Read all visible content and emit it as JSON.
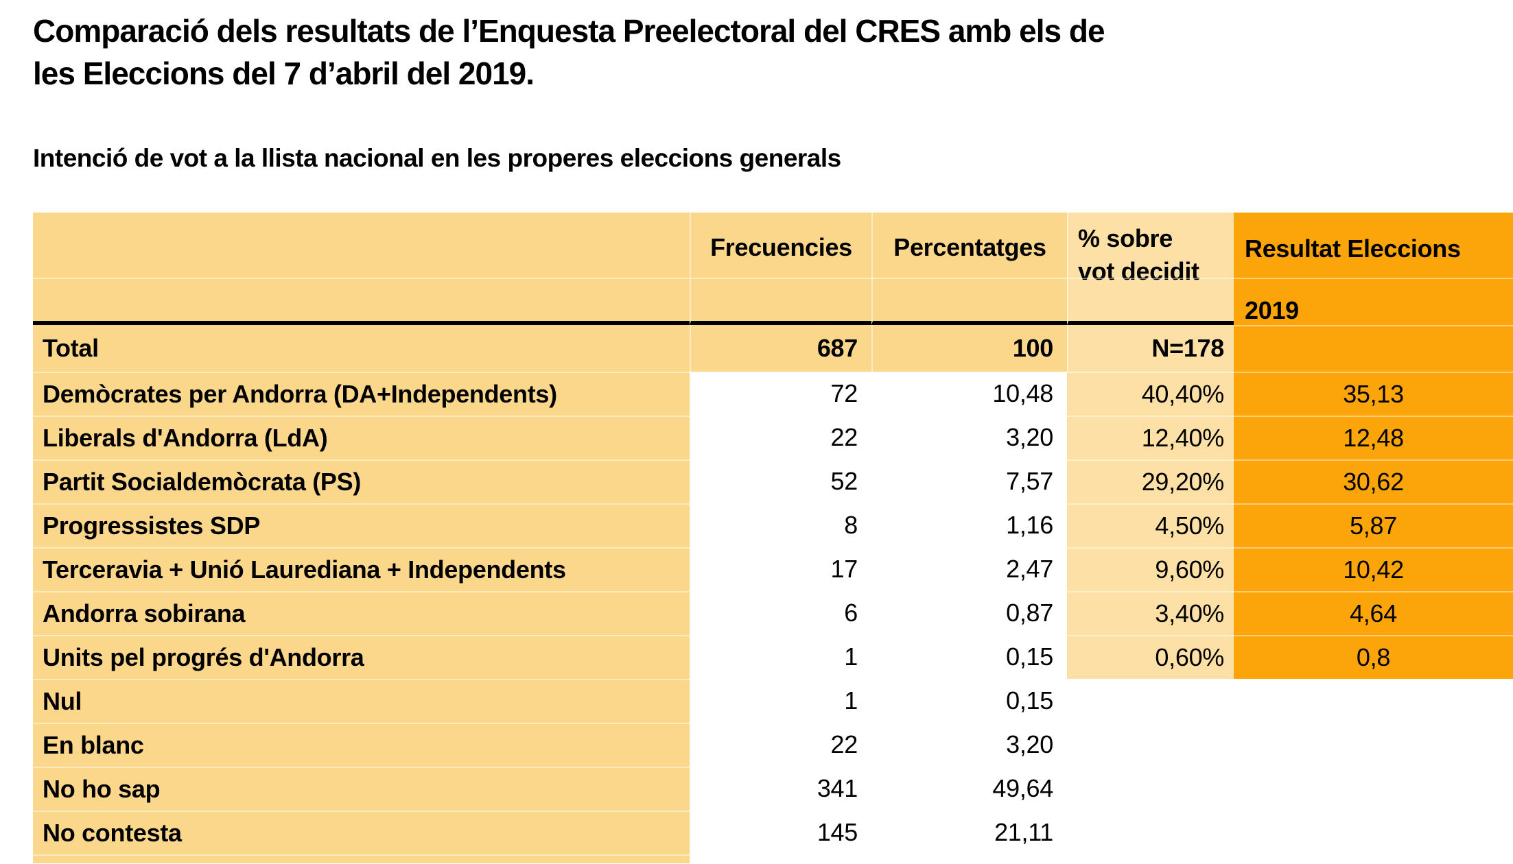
{
  "title": {
    "line1": "Comparació dels resultats de l’Enquesta Preelectoral del CRES amb els de",
    "line2": "les Eleccions del 7 d’abril del 2019."
  },
  "subtitle": "Intenció de vot a la llista nacional en les properes eleccions generals",
  "table": {
    "columns": {
      "frequencies": "Frecuencies",
      "percentages": "Percentatges",
      "decided_line1": "% sobre",
      "decided_line2": "vot decidit",
      "result_line1": "Resultat Eleccions",
      "result_line2": "2019"
    },
    "total": {
      "label": "Total",
      "freq": "687",
      "pct": "100",
      "decided": "N=178"
    },
    "rows": [
      {
        "label": "Demòcrates per Andorra (DA+Independents)",
        "freq": "72",
        "pct": "10,48",
        "decided": "40,40%",
        "result": "35,13"
      },
      {
        "label": "Liberals d'Andorra (LdA)",
        "freq": "22",
        "pct": "3,20",
        "decided": "12,40%",
        "result": "12,48"
      },
      {
        "label": "Partit Socialdemòcrata (PS)",
        "freq": "52",
        "pct": "7,57",
        "decided": "29,20%",
        "result": "30,62"
      },
      {
        "label": "Progressistes SDP",
        "freq": "8",
        "pct": "1,16",
        "decided": "4,50%",
        "result": "5,87"
      },
      {
        "label": "Terceravia + Unió Laurediana + Independents",
        "freq": "17",
        "pct": "2,47",
        "decided": "9,60%",
        "result": "10,42"
      },
      {
        "label": "Andorra sobirana",
        "freq": "6",
        "pct": "0,87",
        "decided": "3,40%",
        "result": "4,64"
      },
      {
        "label": "Units pel progrés d'Andorra",
        "freq": "1",
        "pct": "0,15",
        "decided": "0,60%",
        "result": "0,8"
      },
      {
        "label": "Nul",
        "freq": "1",
        "pct": "0,15",
        "decided": "",
        "result": ""
      },
      {
        "label": "En blanc",
        "freq": "22",
        "pct": "3,20",
        "decided": "",
        "result": ""
      },
      {
        "label": "No ho sap",
        "freq": "341",
        "pct": "49,64",
        "decided": "",
        "result": ""
      },
      {
        "label": "No contesta",
        "freq": "145",
        "pct": "21,11",
        "decided": "",
        "result": ""
      }
    ]
  },
  "colors": {
    "label_column_tan": "#FBD78B",
    "decided_column_cream": "#FDE0A6",
    "results_column_orange": "#FCA50A",
    "text": "#000000",
    "header_rule": "#000000"
  },
  "chart_data": {
    "type": "table",
    "title": "Comparació dels resultats de l’Enquesta Preelectoral del CRES amb els de les Eleccions del 7 d’abril del 2019.",
    "subtitle": "Intenció de vot a la llista nacional en les properes eleccions generals",
    "columns": [
      "",
      "Frecuencies",
      "Percentatges",
      "% sobre vot decidit",
      "Resultat Eleccions 2019"
    ],
    "rows": [
      [
        "Total",
        687,
        100,
        "N=178",
        null
      ],
      [
        "Demòcrates per Andorra (DA+Independents)",
        72,
        10.48,
        "40,40%",
        35.13
      ],
      [
        "Liberals d'Andorra (LdA)",
        22,
        3.2,
        "12,40%",
        12.48
      ],
      [
        "Partit Socialdemòcrata (PS)",
        52,
        7.57,
        "29,20%",
        30.62
      ],
      [
        "Progressistes SDP",
        8,
        1.16,
        "4,50%",
        5.87
      ],
      [
        "Terceravia + Unió Laurediana + Independents",
        17,
        2.47,
        "9,60%",
        10.42
      ],
      [
        "Andorra sobirana",
        6,
        0.87,
        "3,40%",
        4.64
      ],
      [
        "Units pel progrés d'Andorra",
        1,
        0.15,
        "0,60%",
        0.8
      ],
      [
        "Nul",
        1,
        0.15,
        null,
        null
      ],
      [
        "En blanc",
        22,
        3.2,
        null,
        null
      ],
      [
        "No ho sap",
        341,
        49.64,
        null,
        null
      ],
      [
        "No contesta",
        145,
        21.11,
        null,
        null
      ]
    ]
  }
}
